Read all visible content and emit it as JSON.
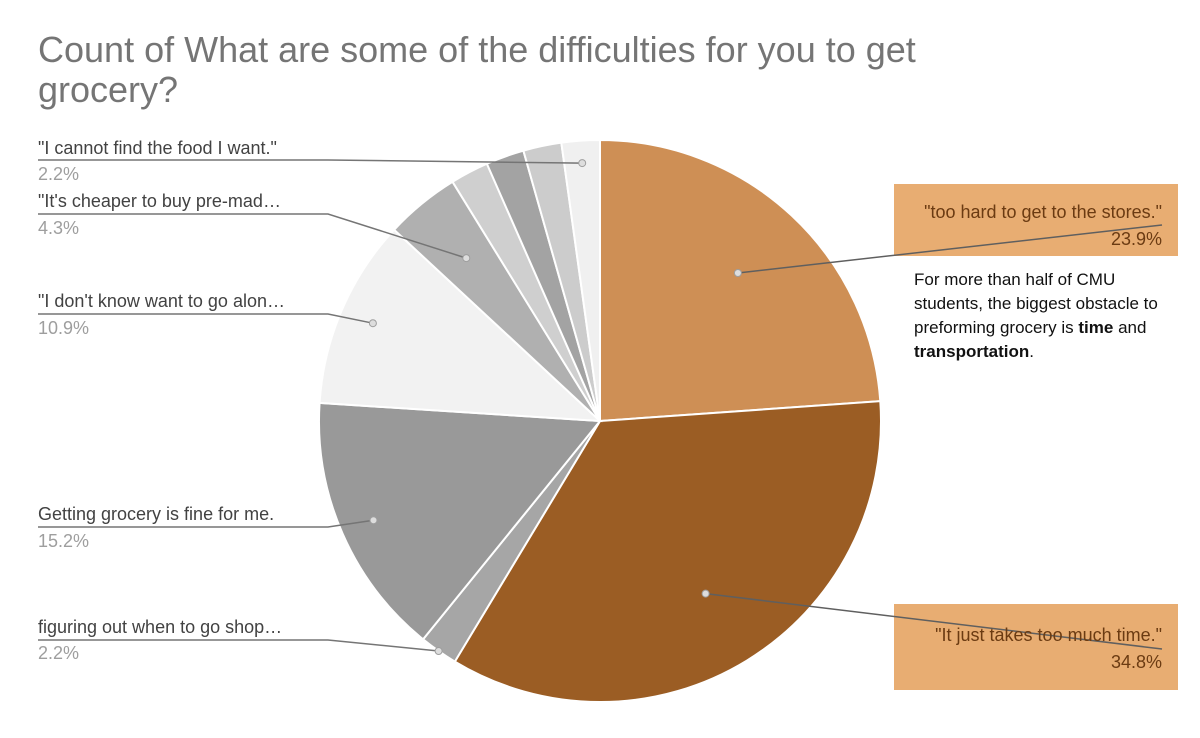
{
  "chart_data": {
    "type": "pie",
    "title": "Count of What are some of the difficulties for you to get grocery?",
    "slices": [
      {
        "label": "\"too hard to get to the stores.\"",
        "value": 23.9,
        "pct_label": "23.9%",
        "color": "#ce8f55",
        "highlight": true
      },
      {
        "label": "\"It just takes too much time.\"",
        "value": 34.8,
        "pct_label": "34.8%",
        "color": "#9b5d24",
        "highlight": true
      },
      {
        "label": "figuring out when to go shop…",
        "value": 2.2,
        "pct_label": "2.2%",
        "color": "#a6a6a6",
        "highlight": false
      },
      {
        "label": "Getting grocery is fine for me.",
        "value": 15.2,
        "pct_label": "15.2%",
        "color": "#999999",
        "highlight": false
      },
      {
        "label": "\"I don't know want to go alon…",
        "value": 10.9,
        "pct_label": "10.9%",
        "color": "#f2f2f2",
        "highlight": false
      },
      {
        "label": "\"It's cheaper to buy pre-mad…",
        "value": 4.3,
        "pct_label": "4.3%",
        "color": "#b0b0b0",
        "highlight": false
      },
      {
        "label": "",
        "value": 2.2,
        "pct_label": "",
        "color": "#cfcfcf",
        "highlight": false
      },
      {
        "label": "",
        "value": 2.2,
        "pct_label": "",
        "color": "#a3a3a3",
        "highlight": false
      },
      {
        "label": "",
        "value": 2.2,
        "pct_label": "",
        "color": "#cccccc",
        "highlight": false
      },
      {
        "label": "\"I cannot find the food I want.\"",
        "value": 2.2,
        "pct_label": "2.2%",
        "color": "#f0f0f0",
        "highlight": false
      }
    ]
  },
  "note": {
    "prefix": "For more than half of CMU students, the biggest obstacle to preforming grocery is ",
    "bold1": "time",
    "mid": " and ",
    "bold2": "transportation",
    "suffix": "."
  }
}
